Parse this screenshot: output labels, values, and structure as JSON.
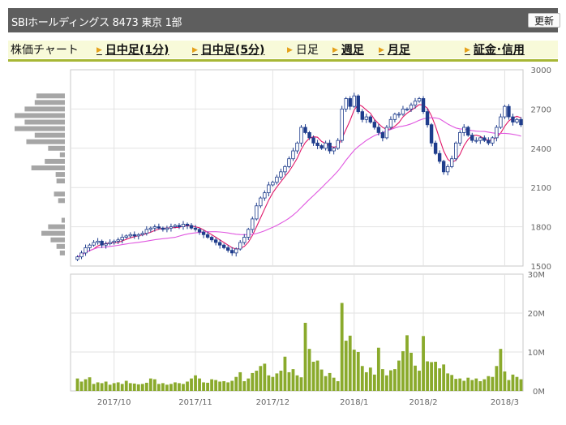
{
  "header": {
    "title": "SBIホールディングス  8473  東京 1部",
    "refresh_label": "更新"
  },
  "tabs": {
    "chart_label": "株価チャート",
    "intraday_1": "日中足(1分)",
    "intraday_5": "日中足(5分)",
    "daily": "日足",
    "weekly": "週足",
    "monthly": "月足",
    "margin": "証金･信用"
  },
  "colors": {
    "up_candle": "#ffffff",
    "down_candle": "#1f3d8c",
    "ma_short": "#e0186a",
    "ma_long": "#e058e0",
    "volume_bar": "#8aaa2c",
    "volume_profile": "#a6a6a6",
    "tab_arrow": "#e5a11a"
  },
  "chart_data": [
    {
      "type": "candlestick",
      "title": "",
      "y_axis": {
        "min": 1500,
        "max": 3000,
        "ticks": [
          1500,
          1800,
          2100,
          2400,
          2700,
          3000
        ],
        "position": "right"
      },
      "x_ticks": [
        "2017/10",
        "2017/11",
        "2017/12",
        "2018/1",
        "2018/2",
        "2018/3"
      ],
      "x_tick_index": [
        9,
        29,
        48,
        68,
        85,
        105
      ],
      "grid": true,
      "series_close": [
        1570,
        1600,
        1640,
        1660,
        1680,
        1690,
        1660,
        1670,
        1680,
        1690,
        1700,
        1720,
        1730,
        1740,
        1730,
        1740,
        1750,
        1780,
        1790,
        1800,
        1790,
        1780,
        1790,
        1800,
        1810,
        1800,
        1820,
        1810,
        1790,
        1780,
        1760,
        1740,
        1720,
        1700,
        1680,
        1660,
        1640,
        1620,
        1600,
        1630,
        1680,
        1720,
        1780,
        1860,
        1960,
        2020,
        2060,
        2120,
        2140,
        2180,
        2220,
        2260,
        2320,
        2380,
        2440,
        2560,
        2520,
        2480,
        2440,
        2420,
        2400,
        2440,
        2380,
        2400,
        2460,
        2700,
        2780,
        2720,
        2800,
        2680,
        2620,
        2640,
        2600,
        2560,
        2520,
        2480,
        2560,
        2620,
        2660,
        2660,
        2700,
        2700,
        2730,
        2760,
        2780,
        2680,
        2580,
        2440,
        2360,
        2300,
        2220,
        2260,
        2320,
        2440,
        2520,
        2560,
        2500,
        2460,
        2460,
        2480,
        2460,
        2440,
        2480,
        2560,
        2640,
        2720,
        2640,
        2600,
        2620,
        2580
      ],
      "volume_profile_price": [
        1600,
        1650,
        1700,
        1750,
        1800,
        1850,
        2000,
        2050,
        2150,
        2200,
        2250,
        2300,
        2350,
        2400,
        2450,
        2500,
        2550,
        2600,
        2650,
        2700,
        2750,
        2800
      ],
      "volume_profile_value": [
        6,
        10,
        17,
        28,
        20,
        4,
        8,
        13,
        10,
        11,
        40,
        24,
        6,
        20,
        46,
        36,
        60,
        48,
        60,
        48,
        36,
        34
      ]
    },
    {
      "type": "bar",
      "title": "",
      "y_axis": {
        "min": 0,
        "max": 30,
        "ticks": [
          "0M",
          "10M",
          "20M",
          "30M"
        ],
        "unit": "M"
      },
      "values": [
        3.2,
        2.4,
        3.0,
        3.5,
        1.8,
        2.2,
        2.0,
        2.4,
        1.6,
        2.0,
        2.2,
        1.8,
        2.6,
        2.0,
        1.9,
        1.7,
        1.8,
        2.1,
        3.2,
        3.0,
        1.8,
        2.0,
        1.6,
        1.8,
        2.2,
        2.0,
        1.8,
        2.4,
        3.2,
        4.0,
        3.2,
        2.2,
        2.1,
        3.0,
        2.8,
        2.4,
        2.5,
        2.2,
        2.6,
        3.6,
        4.8,
        2.5,
        3.2,
        4.6,
        5.2,
        6.4,
        7.0,
        4.0,
        3.6,
        4.5,
        5.2,
        8.8,
        4.8,
        5.6,
        4.0,
        3.5,
        17.5,
        10.8,
        7.5,
        7.8,
        5.5,
        3.8,
        4.6,
        3.4,
        2.5,
        22.6,
        12.9,
        14.2,
        10.6,
        10.0,
        6.4,
        4.8,
        6.0,
        4.2,
        11.1,
        5.6,
        4.0,
        5.3,
        5.6,
        7.8,
        10.2,
        14.3,
        9.8,
        6.5,
        5.2,
        14.1,
        7.6,
        7.4,
        7.5,
        5.8,
        6.8,
        4.5,
        4.1,
        3.1,
        3.2,
        2.6,
        3.4,
        2.8,
        3.2,
        2.5,
        3.0,
        3.8,
        3.6,
        6.4,
        10.8,
        5.0,
        2.8,
        4.2,
        3.6,
        3.0
      ]
    }
  ]
}
